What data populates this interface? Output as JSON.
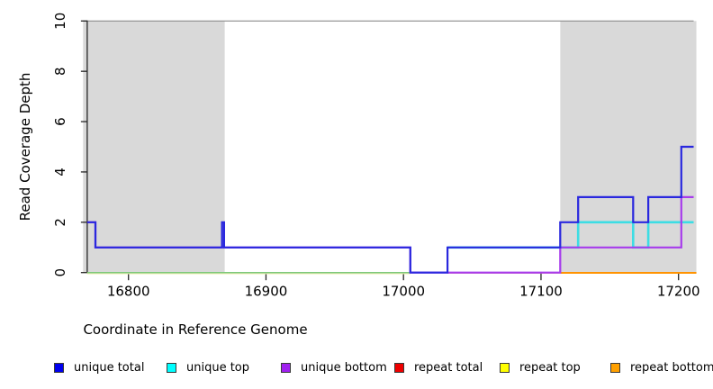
{
  "figure": {
    "background_color": "#ffffff",
    "plot": {
      "x_axis": {
        "label": "Coordinate in Reference Genome",
        "ticks": [
          16800,
          16900,
          17000,
          17100,
          17200
        ]
      },
      "y_axis": {
        "label": "Read Coverage Depth",
        "ticks": [
          0,
          2,
          4,
          6,
          8,
          10
        ]
      }
    }
  },
  "legend": {
    "items": [
      {
        "label": "unique total",
        "color": "#0000ee"
      },
      {
        "label": "unique top",
        "color": "#00ffff"
      },
      {
        "label": "unique bottom",
        "color": "#a020f0"
      },
      {
        "label": "repeat total",
        "color": "#ee0000"
      },
      {
        "label": "repeat top",
        "color": "#ffff00"
      },
      {
        "label": "repeat bottom",
        "color": "#ffa000"
      }
    ]
  },
  "chart_data": {
    "type": "line",
    "step": true,
    "title": "",
    "xlabel": "Coordinate in Reference Genome",
    "ylabel": "Read Coverage Depth",
    "xlim": [
      16767,
      17213
    ],
    "ylim": [
      0,
      10
    ],
    "x_ticks": [
      16800,
      16900,
      17000,
      17100,
      17200
    ],
    "y_ticks": [
      0,
      2,
      4,
      6,
      8,
      10
    ],
    "grid": false,
    "legend_position": "bottom",
    "shaded_regions": [
      {
        "from": 16767,
        "to": 16870,
        "color": "#d9d9d9"
      },
      {
        "from": 17114,
        "to": 17213,
        "color": "#d9d9d9"
      }
    ],
    "top_boundary_line": {
      "y": 10,
      "color": "#8c8c8c"
    },
    "series": [
      {
        "name": "unique total",
        "color": "#2a28de",
        "width": 2.2,
        "points": [
          [
            16770,
            2
          ],
          [
            16776,
            2
          ],
          [
            16776,
            1
          ],
          [
            16868,
            1
          ],
          [
            16868,
            2
          ],
          [
            16869.5,
            2
          ],
          [
            16869.5,
            1
          ],
          [
            17005,
            1
          ],
          [
            17005,
            0
          ],
          [
            17032,
            0
          ],
          [
            17032,
            1
          ],
          [
            17114,
            1
          ],
          [
            17114,
            2
          ],
          [
            17127,
            2
          ],
          [
            17127,
            3
          ],
          [
            17167,
            3
          ],
          [
            17167,
            2
          ],
          [
            17178,
            2
          ],
          [
            17178,
            3
          ],
          [
            17202,
            3
          ],
          [
            17202,
            5
          ],
          [
            17211,
            5
          ]
        ]
      },
      {
        "name": "unique top",
        "color": "#3cdde4",
        "width": 2.6,
        "points": [
          [
            17032,
            1
          ],
          [
            17127,
            1
          ],
          [
            17127,
            2
          ],
          [
            17167,
            2
          ],
          [
            17167,
            1
          ],
          [
            17178,
            1
          ],
          [
            17178,
            2
          ],
          [
            17211,
            2
          ]
        ]
      },
      {
        "name": "unique bottom",
        "color": "#a73cec",
        "width": 2.2,
        "points": [
          [
            16770,
            2
          ],
          [
            16776,
            2
          ],
          [
            16776,
            1
          ],
          [
            17005,
            1
          ],
          [
            17005,
            0
          ],
          [
            17114,
            0
          ],
          [
            17114,
            1
          ],
          [
            17202,
            1
          ],
          [
            17202,
            3
          ],
          [
            17211,
            3
          ]
        ]
      },
      {
        "name": "repeat total",
        "color": "#e00000",
        "width": 1.2,
        "points": [
          [
            16770,
            0
          ],
          [
            17211,
            0
          ]
        ]
      },
      {
        "name": "repeat top",
        "color": "#eded00",
        "width": 1.2,
        "points": [
          [
            16770,
            0
          ],
          [
            17211,
            0
          ]
        ]
      },
      {
        "name": "repeat bottom",
        "color": "#ff9300",
        "width": 1.8,
        "points": [
          [
            16770,
            0
          ],
          [
            17213,
            0
          ]
        ]
      }
    ],
    "zero_line_overlaps": [
      {
        "from": 16770,
        "to": 17005,
        "color": "#efefb2",
        "dy": 1.1,
        "width": 1.4
      },
      {
        "from": 16770,
        "to": 17005,
        "color": "#7cc87c",
        "dy": 0.0,
        "width": 1.5
      },
      {
        "from": 17032,
        "to": 17114,
        "color": "#d23a6e",
        "dy": 0.3,
        "width": 1.5
      },
      {
        "from": 17114,
        "to": 17213,
        "color": "#ff9300",
        "dy": 0.3,
        "width": 2.0
      }
    ]
  }
}
